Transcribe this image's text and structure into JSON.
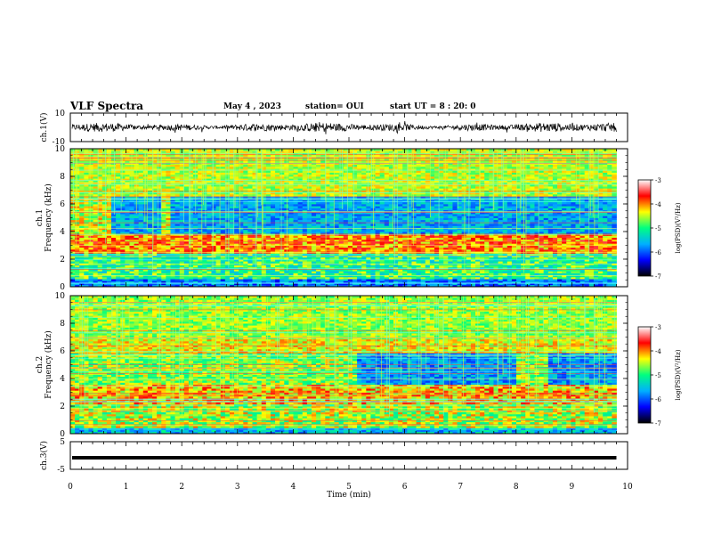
{
  "header": {
    "title": "VLF Spectra",
    "date": "May 4 , 2023",
    "station": "station= OUI",
    "start": "start UT = 8 : 20: 0"
  },
  "chart_data": [
    {
      "type": "line",
      "panel": "ch1-waveform",
      "ylabel": "ch.1(V)",
      "ylim": [
        -10,
        10
      ],
      "ytick_labels": [
        "10",
        "-10"
      ],
      "xlim": [
        0,
        10
      ],
      "trace_color": "#000000"
    },
    {
      "type": "heatmap",
      "panel": "ch1-spectrogram",
      "ylabel": "ch.1\nFrequency (kHz)",
      "ylabel_lines": [
        "ch.1",
        "Frequency (kHz)"
      ],
      "ylim": [
        0,
        10
      ],
      "yticks": [
        0,
        2,
        4,
        6,
        8,
        10
      ],
      "xlim": [
        0,
        10
      ],
      "data_end_min": 9.8,
      "colorbar": {
        "label": "log(PSD)(V²/Hz)",
        "range": [
          -7,
          -3
        ],
        "ticks": [
          -7,
          -6,
          -5,
          -4,
          -3
        ],
        "colors": [
          "#000000",
          "#0000ff",
          "#00b0ff",
          "#00ff80",
          "#ffff00",
          "#ff0000",
          "#ffffff"
        ]
      }
    },
    {
      "type": "heatmap",
      "panel": "ch2-spectrogram",
      "ylabel": "ch.2\nFrequency (kHz)",
      "ylabel_lines": [
        "ch.2",
        "Frequency (kHz)"
      ],
      "ylim": [
        0,
        10
      ],
      "yticks": [
        0,
        2,
        4,
        6,
        8,
        10
      ],
      "xlim": [
        0,
        10
      ],
      "data_end_min": 9.8,
      "colorbar": {
        "label": "log(PSD)(V²/Hz)",
        "range": [
          -7,
          -3
        ],
        "ticks": [
          -7,
          -6,
          -5,
          -4,
          -3
        ],
        "colors": [
          "#000000",
          "#0000ff",
          "#00b0ff",
          "#00ff80",
          "#ffff00",
          "#ff0000",
          "#ffffff"
        ]
      }
    },
    {
      "type": "line",
      "panel": "ch3-waveform",
      "ylabel": "ch.3(V)",
      "ylim": [
        -5,
        5
      ],
      "ytick_labels": [
        "5",
        "-5"
      ],
      "xlim": [
        0,
        10
      ],
      "level_v": -0.8,
      "trace_color": "#000000"
    }
  ],
  "x_axis": {
    "label": "Time (min)",
    "ticks": [
      0,
      1,
      2,
      3,
      4,
      5,
      6,
      7,
      8,
      9,
      10
    ],
    "range": [
      0,
      10
    ]
  }
}
